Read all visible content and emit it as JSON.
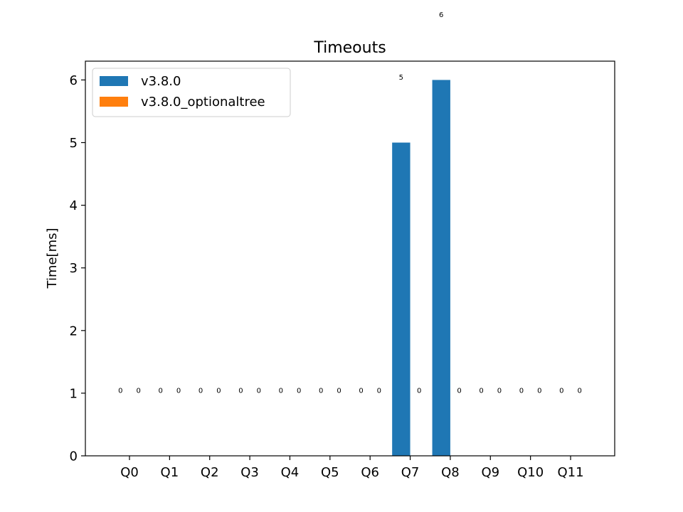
{
  "chart_data": {
    "type": "bar",
    "title": "Timeouts",
    "xlabel": "",
    "ylabel": "Time[ms]",
    "categories": [
      "Q0",
      "Q1",
      "Q2",
      "Q3",
      "Q4",
      "Q5",
      "Q6",
      "Q7",
      "Q8",
      "Q9",
      "Q10",
      "Q11"
    ],
    "series": [
      {
        "name": "v3.8.0",
        "color": "#1f77b4",
        "values": [
          0,
          0,
          0,
          0,
          0,
          0,
          0,
          5,
          6,
          0,
          0,
          0
        ]
      },
      {
        "name": "v3.8.0_optionaltree",
        "color": "#ff7f0e",
        "values": [
          0,
          0,
          0,
          0,
          0,
          0,
          0,
          0,
          0,
          0,
          0,
          0
        ]
      }
    ],
    "ylim": [
      0,
      6.3
    ],
    "yticks": [
      0,
      1,
      2,
      3,
      4,
      5,
      6
    ],
    "legend": "upper-left",
    "grid": false,
    "data_label_offset": 1.05
  }
}
